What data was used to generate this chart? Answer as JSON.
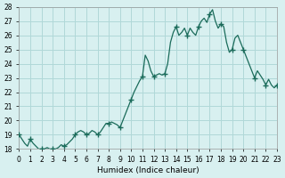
{
  "x": [
    0,
    0.25,
    0.5,
    0.75,
    1,
    1.25,
    1.5,
    1.75,
    2,
    2.25,
    2.5,
    2.75,
    3,
    3.25,
    3.5,
    3.75,
    4,
    4.25,
    4.5,
    4.75,
    5,
    5.25,
    5.5,
    5.75,
    6,
    6.25,
    6.5,
    6.75,
    7,
    7.25,
    7.5,
    7.75,
    8,
    8.25,
    8.5,
    8.75,
    9,
    9.25,
    9.5,
    9.75,
    10,
    10.25,
    10.5,
    10.75,
    11,
    11.25,
    11.5,
    11.75,
    12,
    12.25,
    12.5,
    12.75,
    13,
    13.25,
    13.5,
    13.75,
    14,
    14.25,
    14.5,
    14.75,
    15,
    15.25,
    15.5,
    15.75,
    16,
    16.25,
    16.5,
    16.75,
    17,
    17.25,
    17.5,
    17.75,
    18,
    18.25,
    18.5,
    18.75,
    19,
    19.25,
    19.5,
    19.75,
    20,
    20.25,
    20.5,
    20.75,
    21,
    21.25,
    21.5,
    21.75,
    22,
    22.25,
    22.5,
    22.75,
    23
  ],
  "y": [
    19.0,
    18.7,
    18.4,
    18.2,
    18.7,
    18.4,
    18.2,
    18.0,
    18.0,
    18.0,
    18.1,
    18.0,
    18.0,
    18.0,
    18.1,
    18.3,
    18.2,
    18.3,
    18.5,
    18.7,
    19.0,
    19.2,
    19.3,
    19.2,
    19.0,
    19.1,
    19.3,
    19.2,
    19.0,
    19.2,
    19.5,
    19.8,
    19.8,
    19.9,
    19.8,
    19.7,
    19.5,
    20.0,
    20.5,
    21.0,
    21.5,
    22.0,
    22.4,
    22.8,
    23.1,
    24.6,
    24.2,
    23.5,
    23.1,
    23.2,
    23.3,
    23.2,
    23.3,
    24.0,
    25.5,
    26.2,
    26.6,
    26.0,
    26.2,
    26.5,
    26.0,
    26.5,
    26.2,
    26.0,
    26.6,
    27.0,
    27.2,
    26.9,
    27.5,
    27.8,
    27.0,
    26.5,
    26.8,
    26.6,
    25.5,
    24.8,
    25.0,
    25.8,
    26.0,
    25.5,
    25.0,
    24.5,
    24.0,
    23.5,
    23.0,
    23.5,
    23.2,
    22.9,
    22.5,
    22.9,
    22.5,
    22.3,
    22.5
  ],
  "marker_x": [
    0,
    1,
    2,
    3,
    4,
    5,
    6,
    7,
    8,
    9,
    10,
    11,
    12,
    13,
    14,
    15,
    16,
    17,
    18,
    19,
    20,
    21,
    22,
    23
  ],
  "marker_y": [
    19.0,
    18.7,
    18.0,
    18.0,
    18.2,
    19.0,
    19.0,
    19.0,
    19.8,
    19.5,
    21.5,
    23.1,
    23.1,
    23.3,
    26.6,
    26.0,
    26.6,
    27.5,
    26.8,
    25.0,
    25.0,
    23.0,
    22.5,
    22.5
  ],
  "line_color": "#1a6b5a",
  "bg_color": "#d8f0f0",
  "grid_color": "#b0d8d8",
  "xlabel": "Humidex (Indice chaleur)",
  "xlim": [
    0,
    23
  ],
  "ylim": [
    18,
    28
  ],
  "yticks": [
    18,
    19,
    20,
    21,
    22,
    23,
    24,
    25,
    26,
    27,
    28
  ],
  "xticks": [
    0,
    1,
    2,
    3,
    4,
    5,
    6,
    7,
    8,
    9,
    10,
    11,
    12,
    13,
    14,
    15,
    16,
    17,
    18,
    19,
    20,
    21,
    22,
    23
  ]
}
